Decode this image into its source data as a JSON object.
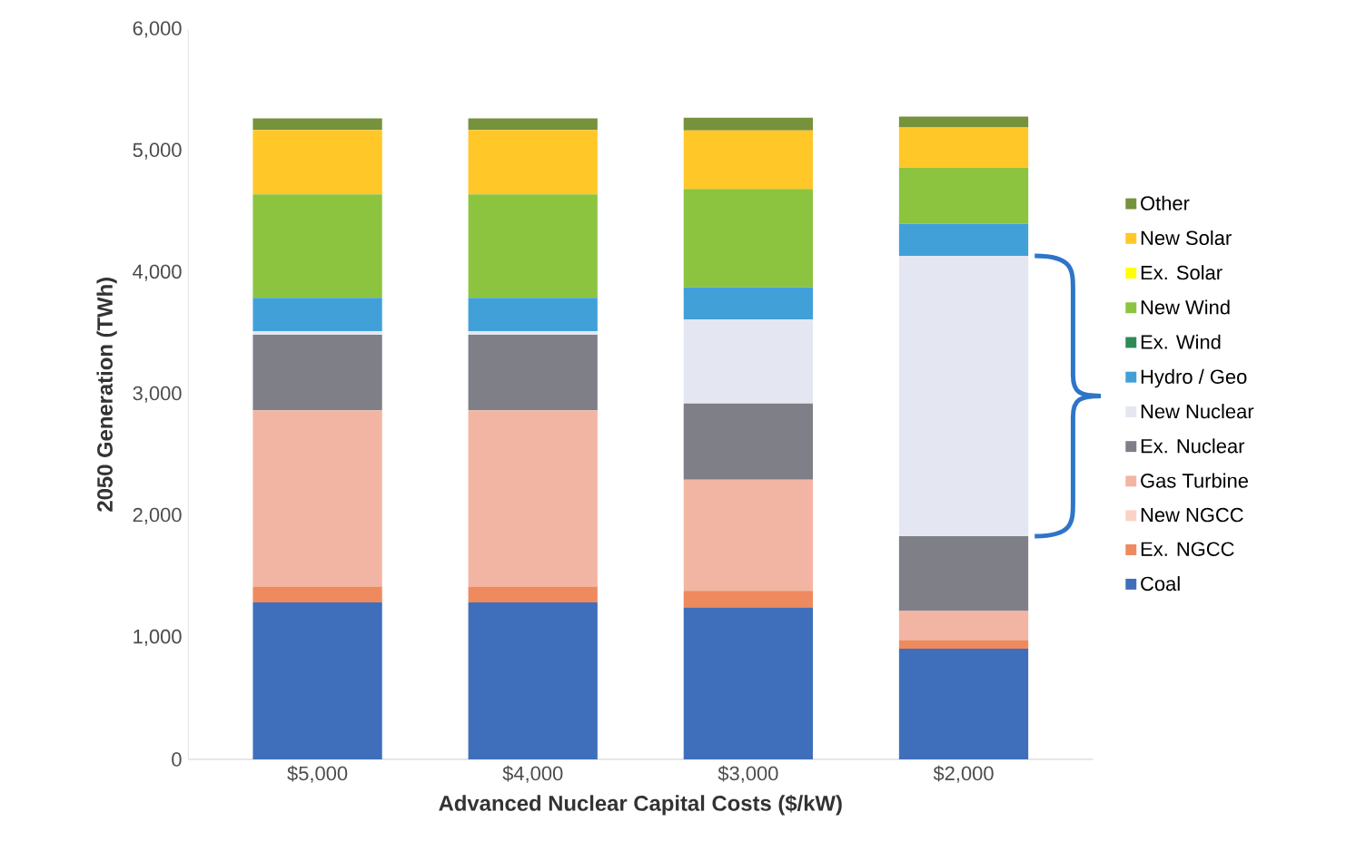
{
  "chart_data": {
    "type": "bar",
    "stacked": true,
    "xlabel": "Advanced Nuclear Capital Costs ($/kW)",
    "ylabel": "2050 Generation (TWh)",
    "categories": [
      "$5,000",
      "$4,000",
      "$3,000",
      "$2,000"
    ],
    "ylim": [
      0,
      6000
    ],
    "yticks": [
      0,
      {
        "value": 1000,
        "label": "1,000"
      },
      {
        "value": 2000,
        "label": "2,000"
      },
      {
        "value": 3000,
        "label": "3,000"
      },
      {
        "value": 4000,
        "label": "4,000"
      },
      {
        "value": 5000,
        "label": "5,000"
      },
      {
        "value": 6000,
        "label": "6,000"
      }
    ],
    "legend": "right",
    "grid": false,
    "series": [
      {
        "name": "Coal",
        "color": "#3f6fba",
        "values": [
          1290,
          1290,
          1250,
          910
        ]
      },
      {
        "name": "Ex. NGCC",
        "color": "#ee8a5e",
        "values": [
          130,
          130,
          135,
          70
        ]
      },
      {
        "name": "New NGCC",
        "color": "#fbd3c6",
        "values": [
          0,
          0,
          0,
          0
        ]
      },
      {
        "name": "Gas Turbine",
        "color": "#f3b5a3",
        "values": [
          1450,
          1450,
          915,
          240
        ]
      },
      {
        "name": "Ex. Nuclear",
        "color": "#7f7f88",
        "values": [
          620,
          620,
          625,
          615
        ]
      },
      {
        "name": "New Nuclear",
        "color": "#e4e7f1",
        "values": [
          30,
          30,
          690,
          2305
        ]
      },
      {
        "name": "Hydro / Geo",
        "color": "#42a0d9",
        "values": [
          275,
          275,
          265,
          265
        ]
      },
      {
        "name": "Ex. Wind",
        "color": "#2e8b57",
        "values": [
          0,
          0,
          0,
          0
        ]
      },
      {
        "name": "New Wind",
        "color": "#8cc43f",
        "values": [
          850,
          850,
          810,
          460
        ]
      },
      {
        "name": "Ex. Solar",
        "color": "#ffff00",
        "values": [
          0,
          0,
          0,
          0
        ]
      },
      {
        "name": "New Solar",
        "color": "#ffc828",
        "values": [
          530,
          530,
          480,
          330
        ]
      },
      {
        "name": "Other",
        "color": "#76923c",
        "values": [
          95,
          95,
          105,
          90
        ]
      }
    ]
  }
}
